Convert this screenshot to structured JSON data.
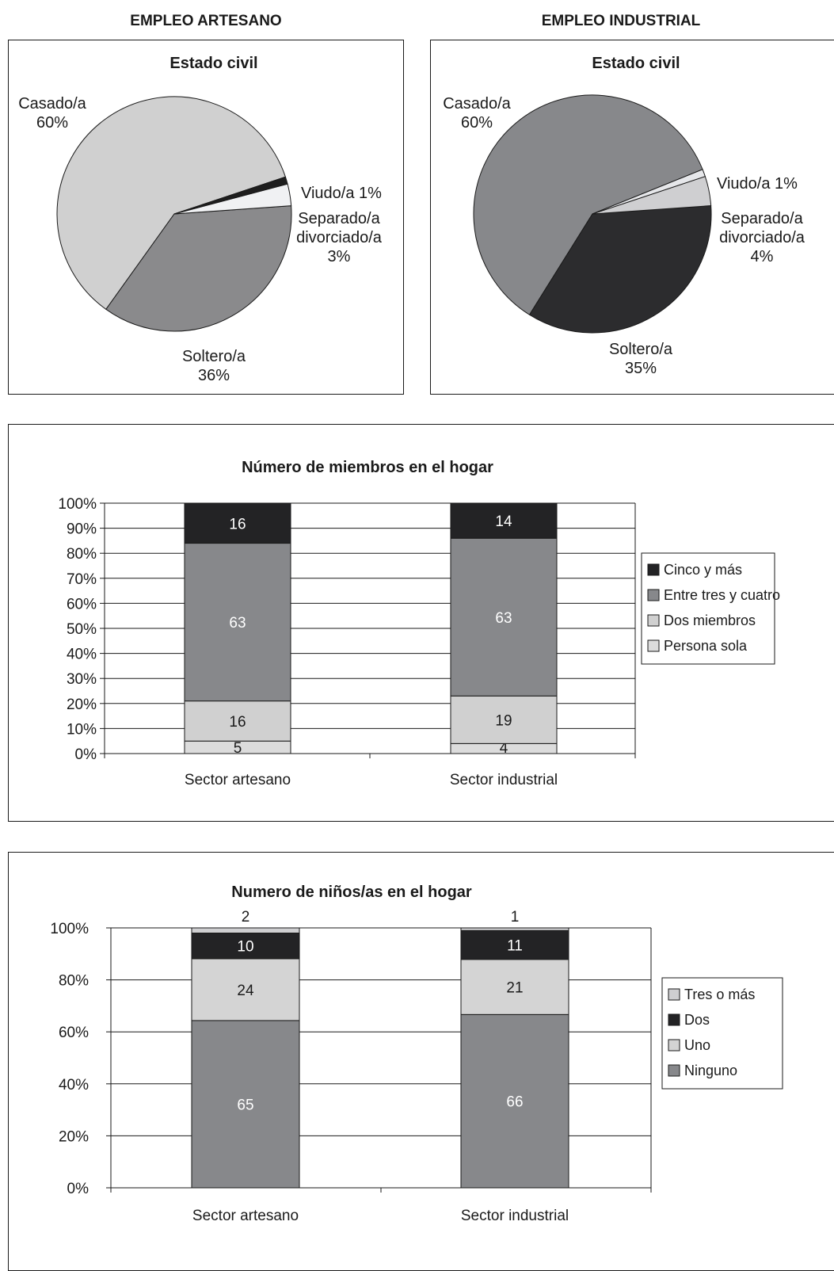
{
  "headings": {
    "left": "EMPLEO ARTESANO",
    "right": "EMPLEO INDUSTRIAL"
  },
  "chart_data": [
    {
      "type": "pie",
      "group": "EMPLEO ARTESANO",
      "title": "Estado civil",
      "slices": [
        {
          "label": "Casado/a",
          "value": 60,
          "color": "#d0d0d0"
        },
        {
          "label": "Viudo/a",
          "value": 1,
          "color": "#1e1e1e"
        },
        {
          "label": "Separado/a divorciado/a",
          "value": 3,
          "color": "#f0f1f3"
        },
        {
          "label": "Soltero/a",
          "value": 36,
          "color": "#8a8a8c"
        }
      ],
      "slice_labels": [
        {
          "lines": [
            "Casado/a",
            "60%"
          ]
        },
        {
          "lines": [
            "Viudo/a 1%"
          ]
        },
        {
          "lines": [
            "Separado/a",
            "divorciado/a",
            "3%"
          ]
        },
        {
          "lines": [
            "Soltero/a",
            "36%"
          ]
        }
      ]
    },
    {
      "type": "pie",
      "group": "EMPLEO INDUSTRIAL",
      "title": "Estado civil",
      "slices": [
        {
          "label": "Casado/a",
          "value": 60,
          "color": "#87888b"
        },
        {
          "label": "Viudo/a",
          "value": 1,
          "color": "#e6e7ea"
        },
        {
          "label": "Separado/a divorciado/a",
          "value": 4,
          "color": "#cfcfd1"
        },
        {
          "label": "Soltero/a",
          "value": 35,
          "color": "#2c2c2e"
        }
      ],
      "slice_labels": [
        {
          "lines": [
            "Casado/a",
            "60%"
          ]
        },
        {
          "lines": [
            "Viudo/a 1%"
          ]
        },
        {
          "lines": [
            "Separado/a",
            "divorciado/a",
            "4%"
          ]
        },
        {
          "lines": [
            "Soltero/a",
            "35%"
          ]
        }
      ]
    },
    {
      "type": "bar",
      "stacked": true,
      "percent": true,
      "title": "Número de miembros en el hogar",
      "categories": [
        "Sector artesano",
        "Sector industrial"
      ],
      "ylim": [
        0,
        100
      ],
      "y_ticks": [
        "0%",
        "10%",
        "20%",
        "30%",
        "40%",
        "50%",
        "60%",
        "70%",
        "80%",
        "90%",
        "100%"
      ],
      "grid": true,
      "legend_position": "right",
      "legend_order": [
        "Cinco y más",
        "Entre tres y cuatro",
        "Dos miembros",
        "Persona sola"
      ],
      "series": [
        {
          "name": "Persona sola",
          "values": [
            5,
            4
          ],
          "color": "#dcdcdc",
          "text_color": "#1a1a1a"
        },
        {
          "name": "Dos miembros",
          "values": [
            16,
            19
          ],
          "color": "#d0d0d0",
          "text_color": "#1a1a1a"
        },
        {
          "name": "Entre tres y cuatro",
          "values": [
            63,
            63
          ],
          "color": "#87888b",
          "text_color": "#ffffff"
        },
        {
          "name": "Cinco y más",
          "values": [
            16,
            14
          ],
          "color": "#232325",
          "text_color": "#ffffff"
        }
      ]
    },
    {
      "type": "bar",
      "stacked": true,
      "percent": true,
      "title": "Numero de niños/as en el hogar",
      "categories": [
        "Sector artesano",
        "Sector industrial"
      ],
      "ylim": [
        0,
        100
      ],
      "y_ticks": [
        "0%",
        "20%",
        "40%",
        "60%",
        "80%",
        "100%"
      ],
      "grid": true,
      "legend_position": "right",
      "legend_order": [
        "Tres o más",
        "Dos",
        "Uno",
        "Ninguno"
      ],
      "series": [
        {
          "name": "Ninguno",
          "values": [
            65,
            66
          ],
          "color": "#87888b",
          "text_color": "#ffffff"
        },
        {
          "name": "Uno",
          "values": [
            24,
            21
          ],
          "color": "#d4d4d4",
          "text_color": "#1a1a1a"
        },
        {
          "name": "Dos",
          "values": [
            10,
            11
          ],
          "color": "#232325",
          "text_color": "#ffffff"
        },
        {
          "name": "Tres o más",
          "values": [
            2,
            1
          ],
          "color": "#cfcfd1",
          "text_color": "#1a1a1a"
        }
      ]
    }
  ]
}
